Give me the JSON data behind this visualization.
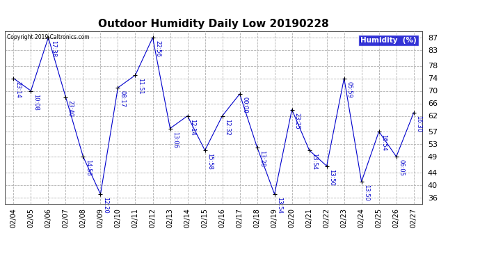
{
  "title": "Outdoor Humidity Daily Low 20190228",
  "legend_label": "Humidity  (%)",
  "background_color": "#ffffff",
  "plot_bg_color": "#ffffff",
  "line_color": "#0000cc",
  "marker_color": "#000000",
  "grid_color": "#b0b0b0",
  "copyright_text": "Copyright 2019 Caltronics.com",
  "dates": [
    "02/04",
    "02/05",
    "02/06",
    "02/07",
    "02/08",
    "02/09",
    "02/10",
    "02/11",
    "02/12",
    "02/13",
    "02/14",
    "02/15",
    "02/16",
    "02/17",
    "02/18",
    "02/19",
    "02/20",
    "02/21",
    "02/22",
    "02/23",
    "02/24",
    "02/25",
    "02/26",
    "02/27"
  ],
  "values": [
    74,
    70,
    87,
    68,
    49,
    37,
    71,
    75,
    87,
    58,
    62,
    51,
    62,
    69,
    52,
    37,
    64,
    51,
    46,
    74,
    41,
    57,
    49,
    63
  ],
  "times": [
    "23:14",
    "10:08",
    "17:38",
    "23:40",
    "14:56",
    "12:20",
    "08:17",
    "11:51",
    "22:56",
    "13:06",
    "12:14",
    "15:58",
    "12:32",
    "00:00",
    "13:28",
    "13:54",
    "23:25",
    "13:54",
    "13:50",
    "05:59",
    "13:50",
    "16:54",
    "06:05",
    "16:30"
  ],
  "yticks": [
    36,
    40,
    44,
    49,
    53,
    57,
    62,
    66,
    70,
    74,
    78,
    83,
    87
  ],
  "ylim": [
    34,
    89
  ],
  "xlim": [
    -0.5,
    23.5
  ],
  "figwidth": 6.9,
  "figheight": 3.75,
  "dpi": 100
}
